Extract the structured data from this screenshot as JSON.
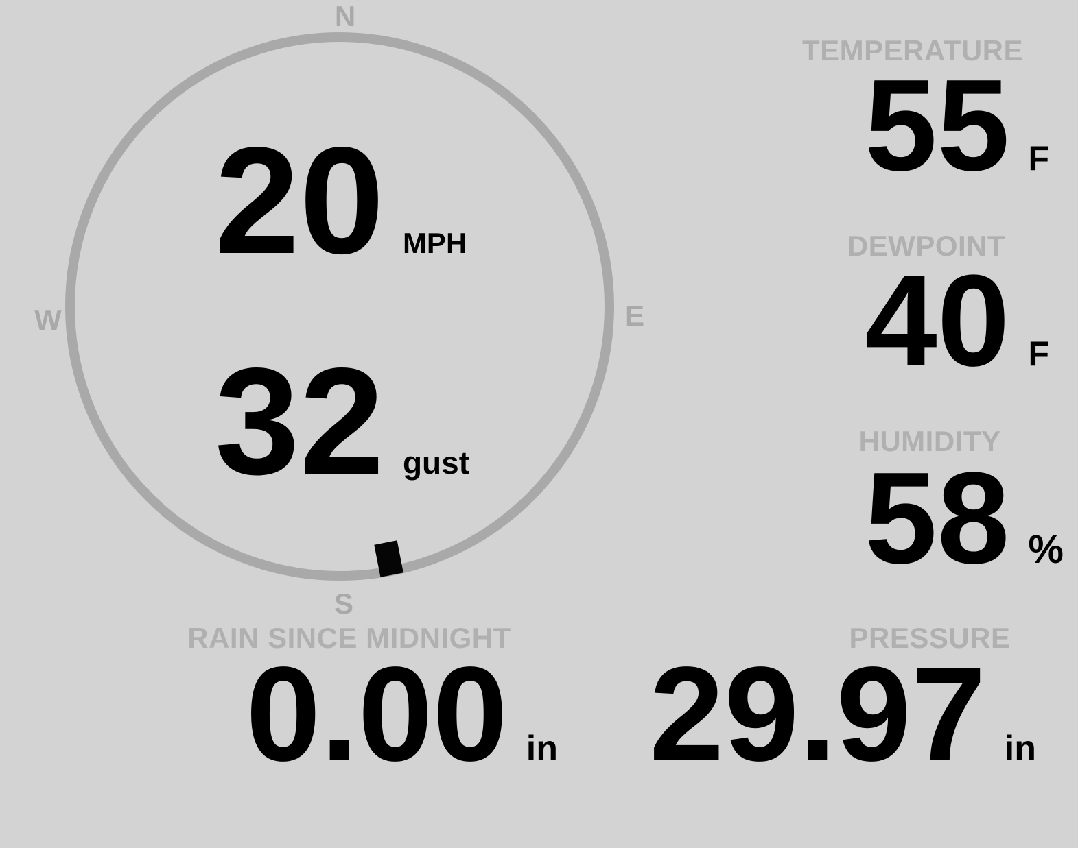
{
  "colors": {
    "background": "#d3d3d3",
    "muted_gray": "#b0b0b0",
    "ring_gray": "#a9a9a9",
    "value_black": "#000000"
  },
  "wind": {
    "speed": "20",
    "speed_unit": "MPH",
    "gust": "32",
    "gust_unit": "gust",
    "direction_degrees": 169,
    "compass_labels": {
      "north": "N",
      "east": "E",
      "south": "S",
      "west": "W"
    }
  },
  "metrics": [
    {
      "id": "temperature",
      "label": "TEMPERATURE",
      "value": "55",
      "unit": "F"
    },
    {
      "id": "dewpoint",
      "label": "DEWPOINT",
      "value": "40",
      "unit": "F"
    },
    {
      "id": "humidity",
      "label": "HUMIDITY",
      "value": "58",
      "unit": "%"
    }
  ],
  "bottom_metrics": [
    {
      "id": "rain_since_midnight",
      "label": "RAIN SINCE MIDNIGHT",
      "value": "0.00",
      "unit": "in"
    },
    {
      "id": "pressure",
      "label": "PRESSURE",
      "value": "29.97",
      "unit": "in"
    }
  ]
}
